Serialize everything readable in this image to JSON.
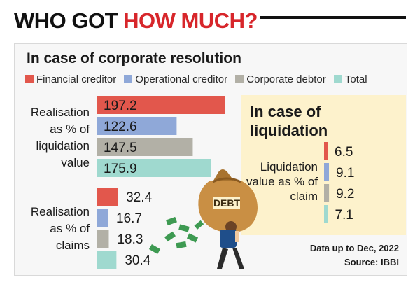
{
  "header": {
    "title_part1": "WHO GOT",
    "title_part2": "HOW MUCH?",
    "title_part1_color": "#111111",
    "title_part2_color": "#d7262b"
  },
  "subtitle": "In case of corporate resolution",
  "legend": [
    {
      "label": "Financial creditor",
      "color": "#e2574c"
    },
    {
      "label": "Operational creditor",
      "color": "#8fa8d8"
    },
    {
      "label": "Corporate debtor",
      "color": "#b2b0a6"
    },
    {
      "label": "Total",
      "color": "#9fd9cf"
    }
  ],
  "illustration": {
    "bag_text": "DEBT",
    "icon": "man-carrying-debt-bag-icon"
  },
  "footer": {
    "data_note": "Data up to Dec, 2022",
    "source": "Source: IBBI"
  },
  "chart_data": [
    {
      "type": "bar",
      "orientation": "horizontal",
      "group_label": "Realisation as % of liquidation value",
      "series": [
        {
          "name": "Financial creditor",
          "value": 197.2
        },
        {
          "name": "Operational creditor",
          "value": 122.6
        },
        {
          "name": "Corporate debtor",
          "value": 147.5
        },
        {
          "name": "Total",
          "value": 175.9
        }
      ]
    },
    {
      "type": "bar",
      "orientation": "horizontal",
      "group_label": "Realisation as % of claims",
      "series": [
        {
          "name": "Financial creditor",
          "value": 32.4
        },
        {
          "name": "Operational creditor",
          "value": 16.7
        },
        {
          "name": "Corporate debtor",
          "value": 18.3
        },
        {
          "name": "Total",
          "value": 30.4
        }
      ]
    },
    {
      "type": "bar",
      "orientation": "horizontal",
      "title": "In case of liquidation",
      "group_label": "Liquidation value as % of claim",
      "series": [
        {
          "name": "Financial creditor",
          "value": 6.5
        },
        {
          "name": "Operational creditor",
          "value": 9.1
        },
        {
          "name": "Corporate debtor",
          "value": 9.2
        },
        {
          "name": "Total",
          "value": 7.1
        }
      ]
    }
  ]
}
